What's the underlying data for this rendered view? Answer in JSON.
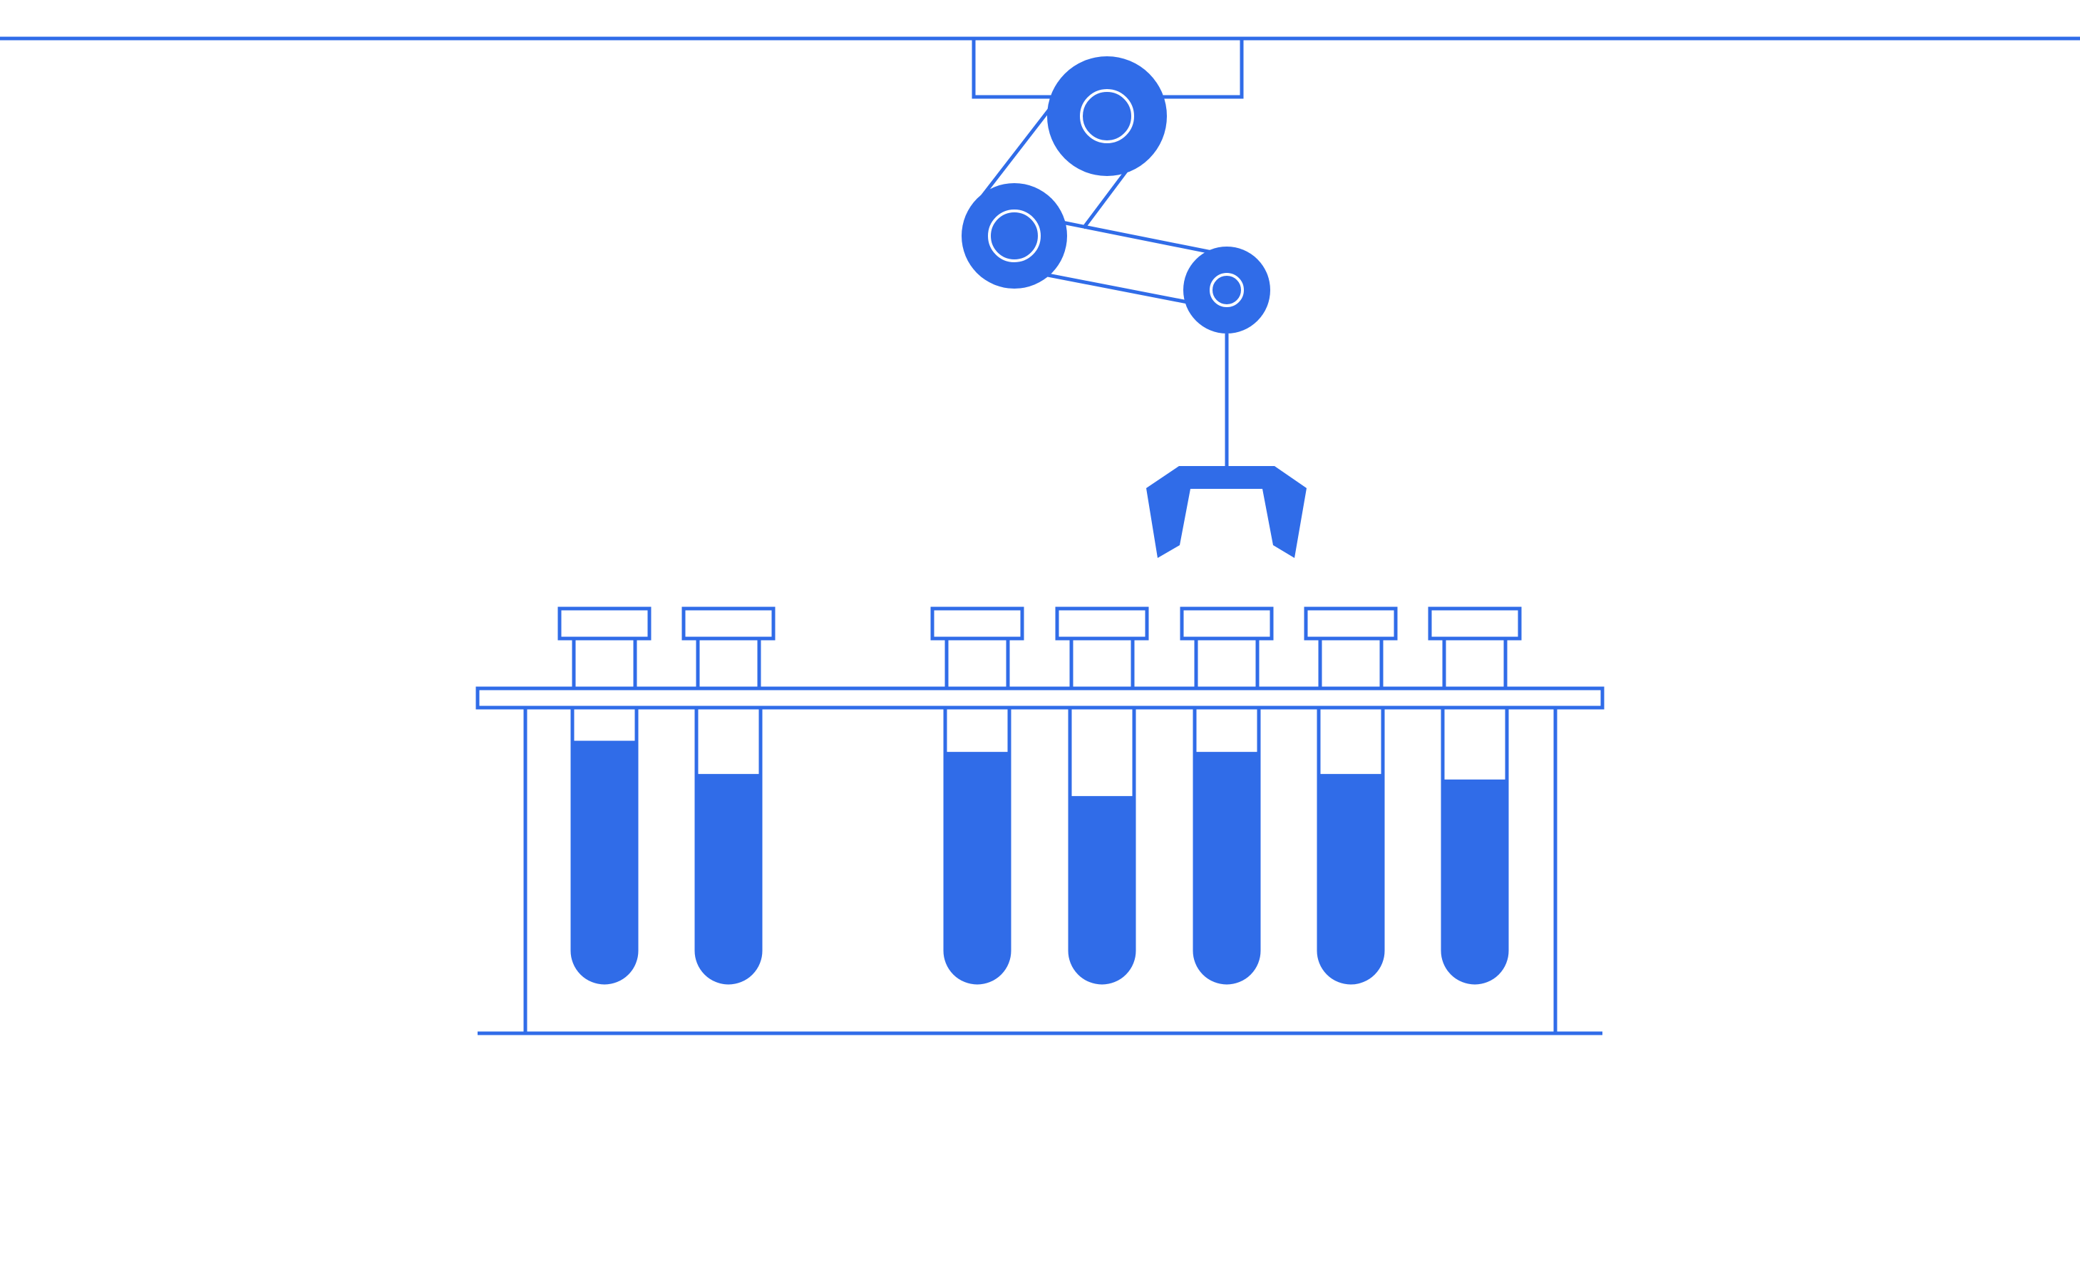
{
  "illustration": {
    "accent_color": "#306CE8",
    "background_color": "#FFFFFF",
    "subject": "robotic-arm-over-test-tube-rack",
    "rack": {
      "tubes": [
        {
          "slot": 1,
          "fill_level": 0.88
        },
        {
          "slot": 2,
          "fill_level": 0.76
        },
        {
          "slot": 4,
          "fill_level": 0.84
        },
        {
          "slot": 5,
          "fill_level": 0.68
        },
        {
          "slot": 6,
          "fill_level": 0.84
        },
        {
          "slot": 7,
          "fill_level": 0.76
        },
        {
          "slot": 8,
          "fill_level": 0.74
        }
      ]
    }
  }
}
